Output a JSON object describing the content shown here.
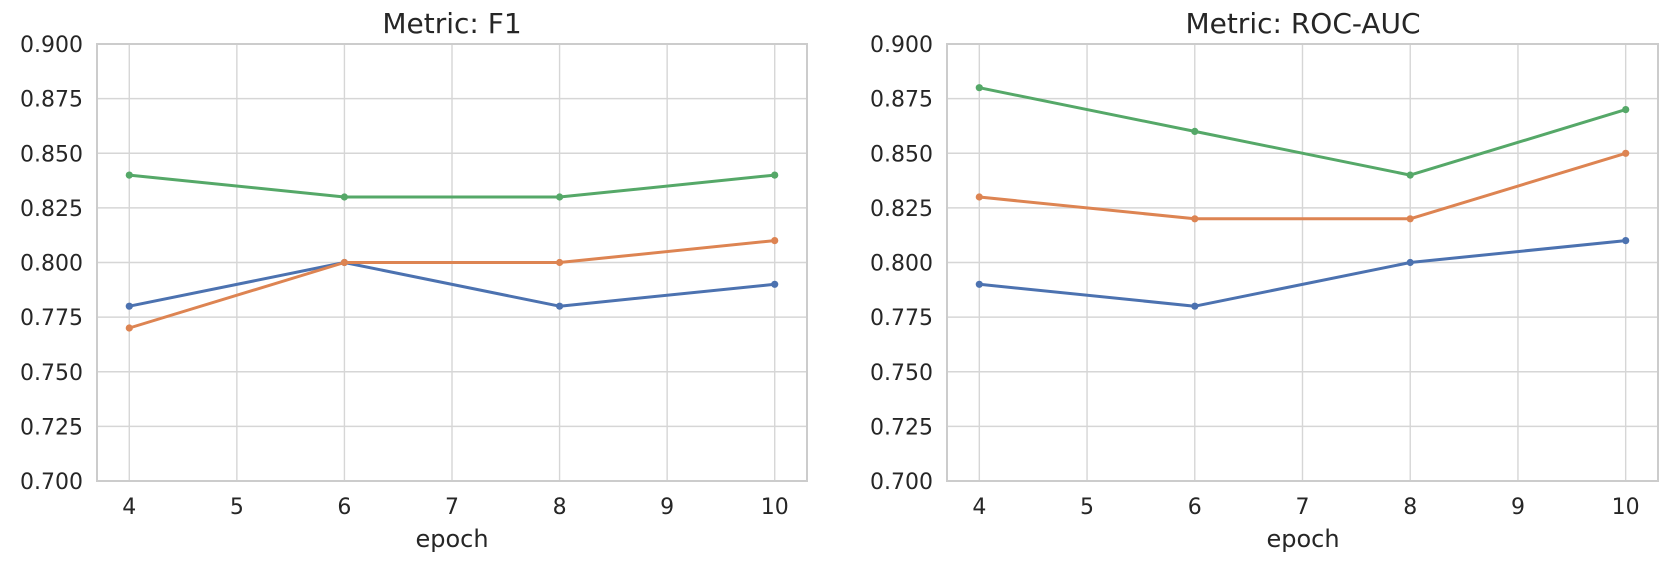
{
  "figure": {
    "background_color": "#ffffff",
    "text_color": "#262626",
    "grid_color": "#d6d6d6",
    "spine_color": "#cccccc"
  },
  "chart_data": [
    {
      "type": "line",
      "title": "Metric: F1",
      "xlabel": "epoch",
      "x": [
        4,
        6,
        8,
        10
      ],
      "xlim": [
        3.7,
        10.3
      ],
      "xticks": [
        4,
        5,
        6,
        7,
        8,
        9,
        10
      ],
      "xtick_labels": [
        "4",
        "5",
        "6",
        "7",
        "8",
        "9",
        "10"
      ],
      "ylim": [
        0.7,
        0.9
      ],
      "yticks": [
        0.7,
        0.725,
        0.75,
        0.775,
        0.8,
        0.825,
        0.85,
        0.875,
        0.9
      ],
      "ytick_labels": [
        "0.700",
        "0.725",
        "0.750",
        "0.775",
        "0.800",
        "0.825",
        "0.850",
        "0.875",
        "0.900"
      ],
      "grid": true,
      "legend_position": "none",
      "series": [
        {
          "name": "blue",
          "color": "#4C72B0",
          "values": [
            0.78,
            0.8,
            0.78,
            0.79
          ]
        },
        {
          "name": "orange",
          "color": "#DD8452",
          "values": [
            0.77,
            0.8,
            0.8,
            0.81
          ]
        },
        {
          "name": "green",
          "color": "#55A868",
          "values": [
            0.84,
            0.83,
            0.83,
            0.84
          ]
        }
      ]
    },
    {
      "type": "line",
      "title": "Metric: ROC-AUC",
      "xlabel": "epoch",
      "x": [
        4,
        6,
        8,
        10
      ],
      "xlim": [
        3.7,
        10.3
      ],
      "xticks": [
        4,
        5,
        6,
        7,
        8,
        9,
        10
      ],
      "xtick_labels": [
        "4",
        "5",
        "6",
        "7",
        "8",
        "9",
        "10"
      ],
      "ylim": [
        0.7,
        0.9
      ],
      "yticks": [
        0.7,
        0.725,
        0.75,
        0.775,
        0.8,
        0.825,
        0.85,
        0.875,
        0.9
      ],
      "ytick_labels": [
        "0.700",
        "0.725",
        "0.750",
        "0.775",
        "0.800",
        "0.825",
        "0.850",
        "0.875",
        "0.900"
      ],
      "grid": true,
      "legend_position": "none",
      "series": [
        {
          "name": "blue",
          "color": "#4C72B0",
          "values": [
            0.79,
            0.78,
            0.8,
            0.81
          ]
        },
        {
          "name": "orange",
          "color": "#DD8452",
          "values": [
            0.83,
            0.82,
            0.82,
            0.85
          ]
        },
        {
          "name": "green",
          "color": "#55A868",
          "values": [
            0.88,
            0.86,
            0.84,
            0.87
          ]
        }
      ]
    }
  ]
}
